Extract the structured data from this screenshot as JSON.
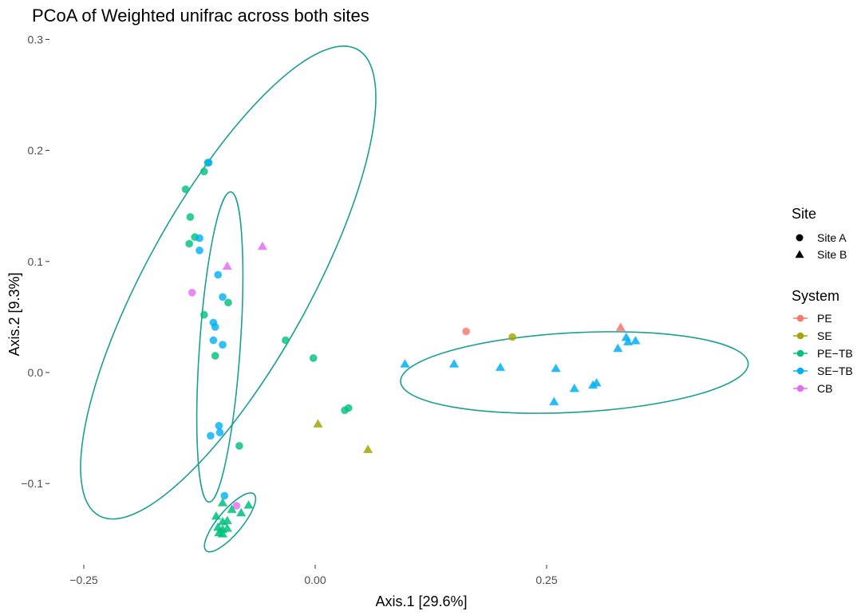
{
  "chart_data": {
    "type": "scatter",
    "title": "PCoA of Weighted unifrac across both sites",
    "xlabel": "Axis.1   [29.6%]",
    "ylabel": "Axis.2   [9.3%]",
    "xlim": [
      -0.25,
      0.42
    ],
    "ylim": [
      -0.17,
      0.3
    ],
    "x_ticks": [
      -0.25,
      0.0,
      0.25
    ],
    "x_tick_labels": [
      "-0.25",
      "0.00",
      "0.25"
    ],
    "y_ticks": [
      -0.1,
      0.0,
      0.1,
      0.2,
      0.3
    ],
    "y_tick_labels": [
      "-0.1",
      "0.0",
      "0.1",
      "0.2",
      "0.3"
    ],
    "grid": false,
    "legend_position": "right",
    "legend": {
      "shape_title": "Site",
      "shape_entries": [
        {
          "label": "Site A",
          "shape": "circle"
        },
        {
          "label": "Site B",
          "shape": "triangle"
        }
      ],
      "color_title": "System",
      "color_entries": [
        {
          "label": "PE",
          "color": "#F8766D"
        },
        {
          "label": "SE",
          "color": "#A3A500"
        },
        {
          "label": "PE−TB",
          "color": "#00BF7D"
        },
        {
          "label": "SE−TB",
          "color": "#00B0F6"
        },
        {
          "label": "CB",
          "color": "#E76BF3"
        }
      ]
    },
    "ellipse_color": "#1A9E96",
    "ellipses": [
      {
        "center": [
          -0.094,
          0.081
        ],
        "semi_major": 0.288,
        "semi_minor": 0.088,
        "angle_deg": 61
      },
      {
        "center": [
          -0.103,
          0.023
        ],
        "semi_major": 0.168,
        "semi_minor": 0.022,
        "angle_deg": 86
      },
      {
        "center": [
          -0.092,
          -0.135
        ],
        "semi_major": 0.04,
        "semi_minor": 0.013,
        "angle_deg": 50
      },
      {
        "center": [
          0.28,
          0.0
        ],
        "semi_major": 0.188,
        "semi_minor": 0.043,
        "angle_deg": 3
      }
    ],
    "points": [
      {
        "x": -0.14,
        "y": 0.165,
        "site": "Site A",
        "system": "PE−TB"
      },
      {
        "x": -0.12,
        "y": 0.181,
        "site": "Site A",
        "system": "PE−TB"
      },
      {
        "x": -0.116,
        "y": 0.189,
        "site": "Site A",
        "system": "PE−TB"
      },
      {
        "x": -0.115,
        "y": 0.189,
        "site": "Site A",
        "system": "SE−TB"
      },
      {
        "x": -0.135,
        "y": 0.14,
        "site": "Site A",
        "system": "PE−TB"
      },
      {
        "x": -0.136,
        "y": 0.116,
        "site": "Site A",
        "system": "PE−TB"
      },
      {
        "x": -0.13,
        "y": 0.122,
        "site": "Site A",
        "system": "PE−TB"
      },
      {
        "x": -0.125,
        "y": 0.121,
        "site": "Site A",
        "system": "SE−TB"
      },
      {
        "x": -0.125,
        "y": 0.11,
        "site": "Site A",
        "system": "SE−TB"
      },
      {
        "x": -0.105,
        "y": 0.088,
        "site": "Site A",
        "system": "SE−TB"
      },
      {
        "x": -0.133,
        "y": 0.072,
        "site": "Site A",
        "system": "CB"
      },
      {
        "x": -0.1,
        "y": 0.068,
        "site": "Site A",
        "system": "SE−TB"
      },
      {
        "x": -0.094,
        "y": 0.063,
        "site": "Site A",
        "system": "PE−TB"
      },
      {
        "x": -0.12,
        "y": 0.052,
        "site": "Site A",
        "system": "PE−TB"
      },
      {
        "x": -0.11,
        "y": 0.045,
        "site": "Site A",
        "system": "SE−TB"
      },
      {
        "x": -0.108,
        "y": 0.041,
        "site": "Site A",
        "system": "SE−TB"
      },
      {
        "x": -0.11,
        "y": 0.029,
        "site": "Site A",
        "system": "SE−TB"
      },
      {
        "x": -0.1,
        "y": 0.025,
        "site": "Site A",
        "system": "SE−TB"
      },
      {
        "x": -0.108,
        "y": 0.015,
        "site": "Site A",
        "system": "PE−TB"
      },
      {
        "x": -0.032,
        "y": 0.029,
        "site": "Site A",
        "system": "PE−TB"
      },
      {
        "x": -0.002,
        "y": 0.013,
        "site": "Site A",
        "system": "PE−TB"
      },
      {
        "x": 0.032,
        "y": -0.034,
        "site": "Site A",
        "system": "PE−TB"
      },
      {
        "x": 0.036,
        "y": -0.032,
        "site": "Site A",
        "system": "PE−TB"
      },
      {
        "x": -0.104,
        "y": -0.048,
        "site": "Site A",
        "system": "SE−TB"
      },
      {
        "x": -0.103,
        "y": -0.054,
        "site": "Site A",
        "system": "SE−TB"
      },
      {
        "x": -0.113,
        "y": -0.057,
        "site": "Site A",
        "system": "SE−TB"
      },
      {
        "x": -0.082,
        "y": -0.066,
        "site": "Site A",
        "system": "PE−TB"
      },
      {
        "x": -0.098,
        "y": -0.111,
        "site": "Site A",
        "system": "SE−TB"
      },
      {
        "x": -0.085,
        "y": -0.12,
        "site": "Site A",
        "system": "CB"
      },
      {
        "x": 0.163,
        "y": 0.037,
        "site": "Site A",
        "system": "PE"
      },
      {
        "x": 0.213,
        "y": 0.032,
        "site": "Site A",
        "system": "SE"
      },
      {
        "x": -0.095,
        "y": 0.095,
        "site": "Site B",
        "system": "CB"
      },
      {
        "x": -0.057,
        "y": 0.113,
        "site": "Site B",
        "system": "CB"
      },
      {
        "x": 0.003,
        "y": -0.047,
        "site": "Site B",
        "system": "SE"
      },
      {
        "x": 0.057,
        "y": -0.07,
        "site": "Site B",
        "system": "SE"
      },
      {
        "x": -0.1,
        "y": -0.118,
        "site": "Site B",
        "system": "PE−TB"
      },
      {
        "x": -0.09,
        "y": -0.124,
        "site": "Site B",
        "system": "PE−TB"
      },
      {
        "x": -0.08,
        "y": -0.127,
        "site": "Site B",
        "system": "PE−TB"
      },
      {
        "x": -0.072,
        "y": -0.12,
        "site": "Site B",
        "system": "PE−TB"
      },
      {
        "x": -0.107,
        "y": -0.13,
        "site": "Site B",
        "system": "PE−TB"
      },
      {
        "x": -0.1,
        "y": -0.135,
        "site": "Site B",
        "system": "PE−TB"
      },
      {
        "x": -0.095,
        "y": -0.134,
        "site": "Site B",
        "system": "PE−TB"
      },
      {
        "x": -0.105,
        "y": -0.14,
        "site": "Site B",
        "system": "PE−TB"
      },
      {
        "x": -0.1,
        "y": -0.142,
        "site": "Site B",
        "system": "PE−TB"
      },
      {
        "x": -0.095,
        "y": -0.141,
        "site": "Site B",
        "system": "PE−TB"
      },
      {
        "x": -0.104,
        "y": -0.145,
        "site": "Site B",
        "system": "PE−TB"
      },
      {
        "x": -0.1,
        "y": -0.146,
        "site": "Site B",
        "system": "PE−TB"
      },
      {
        "x": 0.097,
        "y": 0.007,
        "site": "Site B",
        "system": "SE−TB"
      },
      {
        "x": 0.15,
        "y": 0.007,
        "site": "Site B",
        "system": "SE−TB"
      },
      {
        "x": 0.2,
        "y": 0.004,
        "site": "Site B",
        "system": "SE−TB"
      },
      {
        "x": 0.26,
        "y": 0.003,
        "site": "Site B",
        "system": "SE−TB"
      },
      {
        "x": 0.258,
        "y": -0.027,
        "site": "Site B",
        "system": "SE−TB"
      },
      {
        "x": 0.28,
        "y": -0.015,
        "site": "Site B",
        "system": "SE−TB"
      },
      {
        "x": 0.3,
        "y": -0.012,
        "site": "Site B",
        "system": "SE−TB"
      },
      {
        "x": 0.304,
        "y": -0.01,
        "site": "Site B",
        "system": "SE−TB"
      },
      {
        "x": 0.327,
        "y": 0.021,
        "site": "Site B",
        "system": "SE−TB"
      },
      {
        "x": 0.336,
        "y": 0.031,
        "site": "Site B",
        "system": "SE−TB"
      },
      {
        "x": 0.338,
        "y": 0.027,
        "site": "Site B",
        "system": "SE−TB"
      },
      {
        "x": 0.346,
        "y": 0.028,
        "site": "Site B",
        "system": "SE−TB"
      },
      {
        "x": 0.33,
        "y": 0.04,
        "site": "Site B",
        "system": "PE"
      }
    ]
  }
}
